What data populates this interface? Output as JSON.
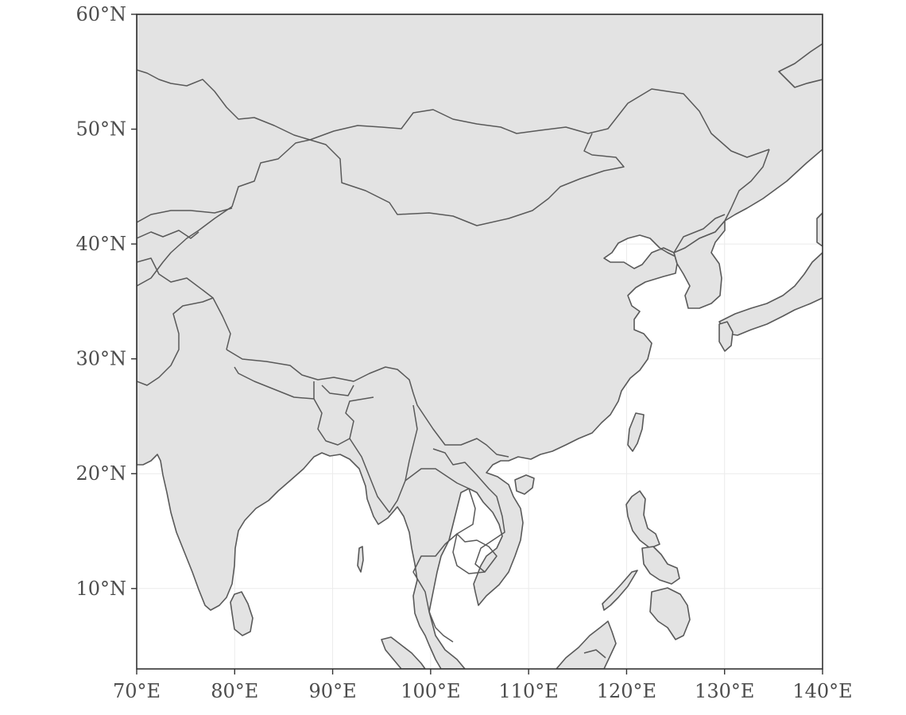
{
  "map": {
    "lon_range": [
      70,
      140
    ],
    "lat_range": [
      3,
      60
    ],
    "colors": {
      "land": "#e3e3e3",
      "border": "#595959",
      "ocean": "#ffffff",
      "grid": "#ebebeb",
      "frame": "#333333",
      "label": "#4d4d4d"
    },
    "x_ticks": [
      {
        "value": 70,
        "label": "70°E"
      },
      {
        "value": 80,
        "label": "80°E"
      },
      {
        "value": 90,
        "label": "90°E"
      },
      {
        "value": 100,
        "label": "100°E"
      },
      {
        "value": 110,
        "label": "110°E"
      },
      {
        "value": 120,
        "label": "120°E"
      },
      {
        "value": 130,
        "label": "130°E"
      },
      {
        "value": 140,
        "label": "140°E"
      }
    ],
    "y_ticks": [
      {
        "value": 60,
        "label": "60°N"
      },
      {
        "value": 50,
        "label": "50°N"
      },
      {
        "value": 40,
        "label": "40°N"
      },
      {
        "value": 30,
        "label": "30°N"
      },
      {
        "value": 20,
        "label": "20°N"
      },
      {
        "value": 10,
        "label": "10°N"
      }
    ]
  }
}
